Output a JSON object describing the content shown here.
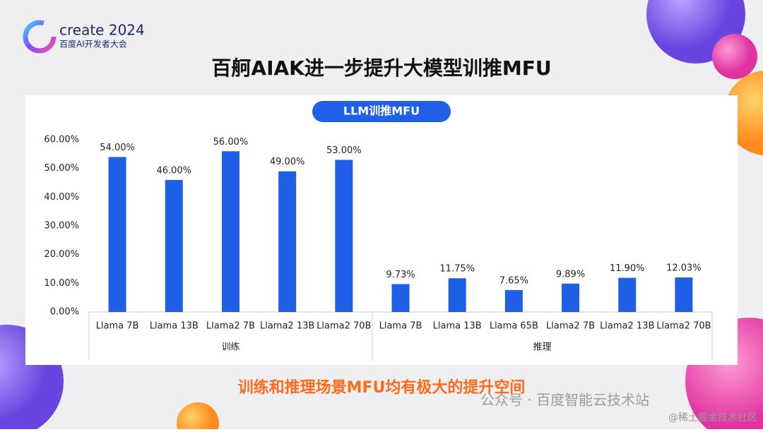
{
  "header": {
    "logo": "create 2024",
    "logo_subtitle": "百度AI开发者大会"
  },
  "title": "百舸AIAK进一步提升大模型训推MFU",
  "chart_data": {
    "type": "bar",
    "title": "LLM训推MFU",
    "color": "#1f5fe6",
    "groups": [
      {
        "name": "训练",
        "categories": [
          "Llama 7B",
          "Llama 13B",
          "Llama2 7B",
          "Llama2 13B",
          "Llama2 70B"
        ],
        "values": [
          54,
          46,
          56,
          49,
          53
        ],
        "value_labels": [
          "54.00%",
          "46.00%",
          "56.00%",
          "49.00%",
          "53.00%"
        ]
      },
      {
        "name": "推理",
        "categories": [
          "Llama 7B",
          "Llama 13B",
          "Llama 65B",
          "Llama2 7B",
          "Llama2 13B",
          "Llama2 70B"
        ],
        "values": [
          9.73,
          11.75,
          7.65,
          9.89,
          11.9,
          12.03
        ],
        "value_labels": [
          "9.73%",
          "11.75%",
          "7.65%",
          "9.89%",
          "11.90%",
          "12.03%"
        ]
      }
    ],
    "ylim": [
      0,
      60
    ],
    "yticks": [
      {
        "value": 0,
        "label": "0.00%"
      },
      {
        "value": 10,
        "label": "10.00%"
      },
      {
        "value": 20,
        "label": "20.00%"
      },
      {
        "value": 30,
        "label": "30.00%"
      },
      {
        "value": 40,
        "label": "40.00%"
      },
      {
        "value": 50,
        "label": "50.00%"
      },
      {
        "value": 60,
        "label": "60.00%"
      }
    ],
    "grid": false
  },
  "footer": "训练和推理场景MFU均有极大的提升空间",
  "watermark": "公众号 · 百度智能云技术站",
  "credit": "@稀土掘金技术社区"
}
